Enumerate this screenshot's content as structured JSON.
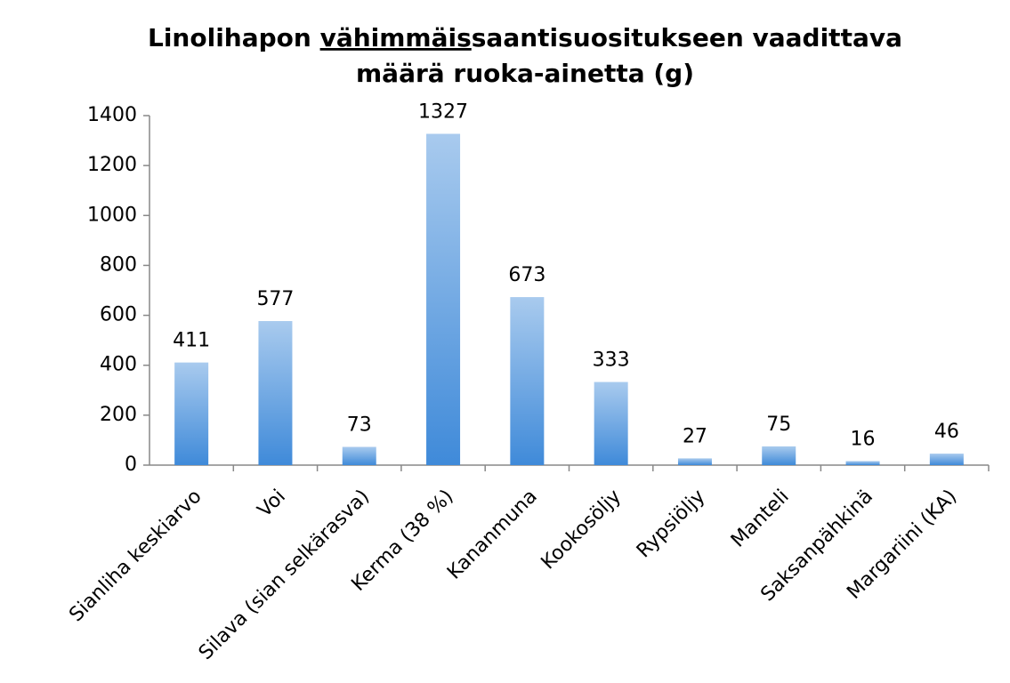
{
  "chart_data": {
    "type": "bar",
    "title": [
      [
        "Linolihapon ",
        "vähimmäis",
        "saantisuositukseen vaadittava"
      ],
      [
        "määrä ruoka-ainetta (g)"
      ]
    ],
    "title_underline": [
      [
        0,
        1
      ]
    ],
    "categories": [
      "Sianliha keskiarvo",
      "Voi",
      "Silava (sian selkärasva)",
      "Kerma (38 %)",
      "Kananmuna",
      "Kookosöljy",
      "Rypsiöljy",
      "Manteli",
      "Saksanpähkinä",
      "Margariini (KA)"
    ],
    "values": [
      411,
      577,
      73,
      1327,
      673,
      333,
      27,
      75,
      16,
      46
    ],
    "color": "#3f8ad9",
    "ylim": [
      0,
      1400
    ],
    "yticks": [
      0,
      200,
      400,
      600,
      800,
      1000,
      1200,
      1400
    ],
    "grid": false
  }
}
